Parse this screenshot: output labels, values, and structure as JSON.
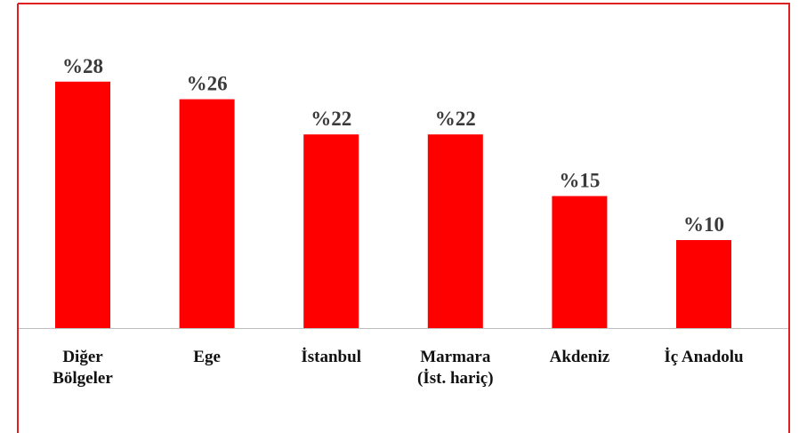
{
  "chart_data": {
    "type": "bar",
    "categories": [
      "Diğer\nBölgeler",
      "Ege",
      "İstanbul",
      "Marmara\n(İst. hariç)",
      "Akdeniz",
      "İç Anadolu"
    ],
    "values": [
      28,
      26,
      22,
      22,
      15,
      10
    ],
    "value_labels": [
      "%28",
      "%26",
      "%22",
      "%22",
      "%15",
      "%10"
    ],
    "color": "#ff0000"
  }
}
